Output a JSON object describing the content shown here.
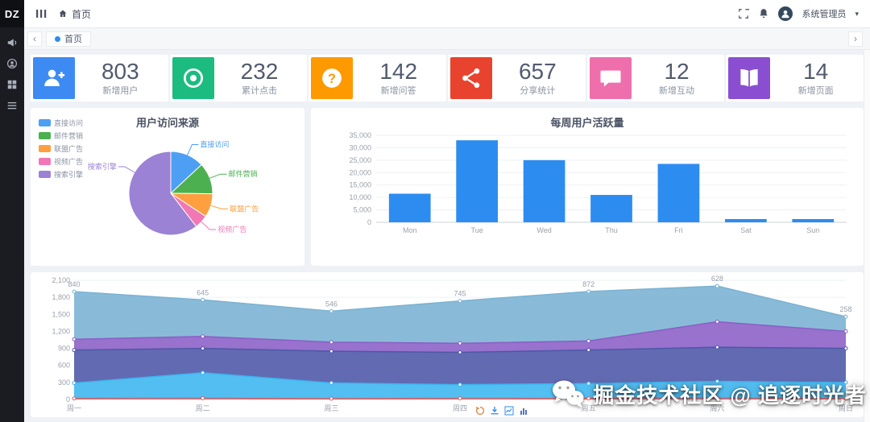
{
  "app": {
    "logo": "DZ"
  },
  "sidebar": {
    "icons": [
      {
        "name": "megaphone-icon"
      },
      {
        "name": "user-circle-icon"
      },
      {
        "name": "grid-icon"
      },
      {
        "name": "list-icon"
      }
    ]
  },
  "topbar": {
    "home_label": "首页",
    "user_name": "系统管理员"
  },
  "tabbar": {
    "active_tab": "首页"
  },
  "stats": [
    {
      "icon": "user-add",
      "color": "#3d8af2",
      "value": "803",
      "label": "新增用户"
    },
    {
      "icon": "target",
      "color": "#1cbb80",
      "value": "232",
      "label": "累计点击"
    },
    {
      "icon": "question",
      "color": "#ff9900",
      "value": "142",
      "label": "新增问答"
    },
    {
      "icon": "share",
      "color": "#e8432e",
      "value": "657",
      "label": "分享统计"
    },
    {
      "icon": "chat",
      "color": "#ef6fac",
      "value": "12",
      "label": "新增互动"
    },
    {
      "icon": "book",
      "color": "#8a4fd0",
      "value": "14",
      "label": "新增页面"
    }
  ],
  "chart_data": [
    {
      "type": "pie",
      "title": "用户访问来源",
      "labels": [
        "直接访问",
        "邮件营销",
        "联盟广告",
        "视频广告",
        "搜索引擎"
      ],
      "values": [
        335,
        310,
        234,
        135,
        1548
      ],
      "colors": [
        "#4d9ff3",
        "#4cb050",
        "#ff9f40",
        "#f178b4",
        "#9b82d4"
      ],
      "legend_position": "left"
    },
    {
      "type": "bar",
      "title": "每周用户活跃量",
      "categories": [
        "Mon",
        "Tue",
        "Wed",
        "Thu",
        "Fri",
        "Sat",
        "Sun"
      ],
      "values": [
        11500,
        33000,
        25000,
        11000,
        23500,
        1300,
        1300
      ],
      "color": "#2d8cf0",
      "ylim": [
        0,
        35000
      ],
      "ytick_step": 5000,
      "grid": true
    },
    {
      "type": "area",
      "categories": [
        "周一",
        "周二",
        "周三",
        "周四",
        "周五",
        "周六",
        "周日"
      ],
      "ylim": [
        0,
        2100
      ],
      "ytick_step": 300,
      "grid": true,
      "series": [
        {
          "name": "line-red",
          "type": "line",
          "color": "#e25b5b",
          "values": [
            18,
            22,
            15,
            20,
            18,
            22,
            16
          ]
        },
        {
          "name": "band-cyan",
          "type": "area",
          "color": "#3bb5ef",
          "values": [
            290,
            470,
            290,
            260,
            280,
            320,
            300
          ]
        },
        {
          "name": "band-indigo",
          "type": "area",
          "color": "#4c57a7",
          "values": [
            580,
            430,
            560,
            570,
            590,
            600,
            600
          ]
        },
        {
          "name": "band-purple",
          "type": "area",
          "color": "#8a5ec6",
          "values": [
            190,
            210,
            160,
            160,
            160,
            450,
            300
          ]
        },
        {
          "name": "band-steel",
          "type": "area",
          "color": "#79b2d3",
          "values": [
            840,
            645,
            546,
            745,
            872,
            628,
            258
          ],
          "show_labels": true
        }
      ]
    }
  ],
  "area_toolbox": [
    {
      "name": "refresh-icon",
      "color": "#e0823d"
    },
    {
      "name": "download-icon",
      "color": "#2d8cf0"
    },
    {
      "name": "chart-line-icon",
      "color": "#2d8cf0"
    },
    {
      "name": "chart-bar-icon",
      "color": "#5470c6"
    }
  ],
  "watermark": {
    "text": "掘金技术社区 @ 追逐时光者",
    "icon": "wechat-icon"
  }
}
